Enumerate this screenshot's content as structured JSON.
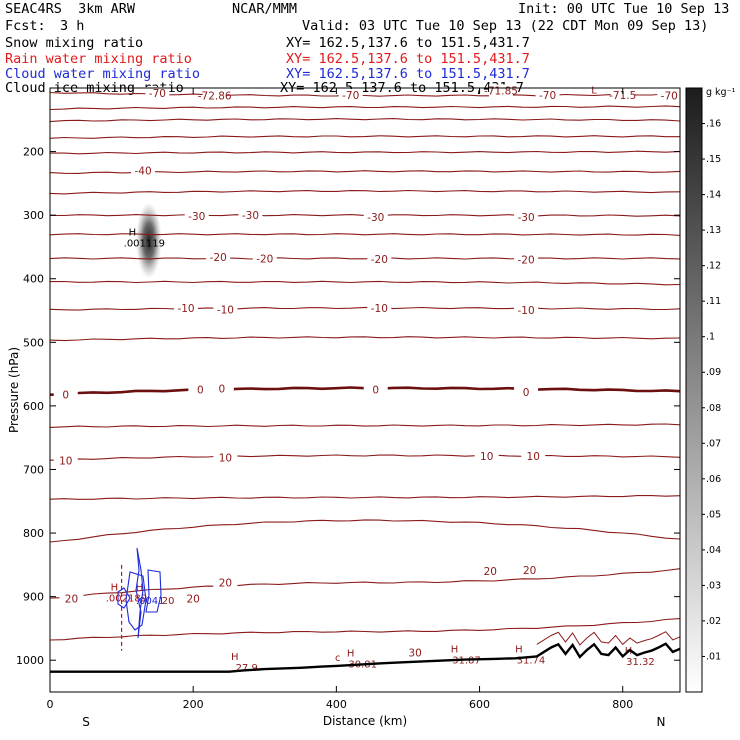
{
  "header": {
    "model": "SEAC4RS  3km ARW",
    "org": "NCAR/MMM",
    "init": "Init: 00 UTC Tue 10 Sep 13",
    "fcst_label": "Fcst:",
    "fcst_value": "3 h",
    "valid": "Valid: 03 UTC Tue 10 Sep 13 (22 CDT Mon 09 Sep 13)",
    "fields": [
      {
        "name": "Snow mixing ratio",
        "xy": "XY= 162.5,137.6 to 151.5,431.7",
        "color": "#000000"
      },
      {
        "name": "Rain water mixing ratio",
        "xy": "XY= 162.5,137.6 to 151.5,431.7",
        "color": "#e31a1c"
      },
      {
        "name": "Cloud water mixing ratio",
        "xy": "XY= 162.5,137.6 to 151.5,431.7",
        "color": "#1f2bd8"
      },
      {
        "name": "Cloud ice mixing ratio",
        "xy": "XY= 162.5,137.6 to 151.5,431.7",
        "color": "#000000"
      }
    ]
  },
  "chart_data": {
    "type": "cross-section contour",
    "xlabel": "Distance (km)",
    "ylabel": "Pressure (hPa)",
    "xlim": [
      0,
      880
    ],
    "ylim": [
      100,
      1050
    ],
    "y_scale": "linear (pressure, inverted)",
    "x_ticks": [
      0,
      200,
      400,
      600,
      800
    ],
    "y_ticks": [
      200,
      300,
      400,
      500,
      600,
      700,
      800,
      900,
      1000
    ],
    "endpoint_labels": {
      "left": "S",
      "right": "N"
    },
    "colorbar": {
      "units": "g kg⁻¹",
      "ticks": [
        ".01",
        ".02",
        ".03",
        ".04",
        ".05",
        ".06",
        ".07",
        ".08",
        ".09",
        ".1",
        ".11",
        ".12",
        ".13",
        ".14",
        ".15",
        ".16"
      ],
      "min": 0,
      "max": 0.17,
      "color_low": "#ffffff",
      "color_high": "#222222"
    },
    "temperature_contours": [
      {
        "label": "-70",
        "p_left": 107,
        "p_mid": 112,
        "p_right": 110
      },
      {
        "label": "",
        "p_left": 133,
        "p_mid": 130,
        "p_right": 129
      },
      {
        "label": "",
        "p_left": 152,
        "p_mid": 149,
        "p_right": 151
      },
      {
        "label": "",
        "p_left": 179,
        "p_mid": 176,
        "p_right": 176
      },
      {
        "label": "",
        "p_left": 203,
        "p_mid": 201,
        "p_right": 200
      },
      {
        "label": "-40",
        "p_left": 234,
        "p_mid": 231,
        "p_right": 232
      },
      {
        "label": "",
        "p_left": 266,
        "p_mid": 262,
        "p_right": 264
      },
      {
        "label": "-30",
        "p_left": 300,
        "p_mid": 300,
        "p_right": 301
      },
      {
        "label": "",
        "p_left": 330,
        "p_mid": 330,
        "p_right": 331
      },
      {
        "label": "-20",
        "p_left": 368,
        "p_mid": 368,
        "p_right": 368
      },
      {
        "label": "",
        "p_left": 405,
        "p_mid": 405,
        "p_right": 409
      },
      {
        "label": "-10",
        "p_left": 449,
        "p_mid": 446,
        "p_right": 448
      },
      {
        "label": "",
        "p_left": 497,
        "p_mid": 492,
        "p_right": 494
      },
      {
        "label": "0",
        "p_left": 582,
        "p_mid": 572,
        "p_right": 577
      },
      {
        "label": "",
        "p_left": 633,
        "p_mid": 631,
        "p_right": 629
      },
      {
        "label": "10",
        "p_left": 685,
        "p_mid": 678,
        "p_right": 680
      },
      {
        "label": "",
        "p_left": 747,
        "p_mid": 744,
        "p_right": 741
      },
      {
        "label": "",
        "p_left": 815,
        "p_mid": 780,
        "p_right": 810
      },
      {
        "label": "20",
        "p_left": 903,
        "p_mid": 878,
        "p_right": 857
      },
      {
        "label": "",
        "p_left": 968,
        "p_mid": 955,
        "p_right": 935
      }
    ],
    "contour_labels": [
      {
        "text": "-72.86",
        "x": 230,
        "p": 112
      },
      {
        "text": "-70",
        "x": 150,
        "p": 108
      },
      {
        "text": "-70",
        "x": 420,
        "p": 111
      },
      {
        "text": "-71.85",
        "x": 630,
        "p": 104
      },
      {
        "text": "-70",
        "x": 695,
        "p": 111
      },
      {
        "text": "-71.5",
        "x": 800,
        "p": 111
      },
      {
        "text": "-70",
        "x": 865,
        "p": 112
      },
      {
        "text": "-40",
        "x": 130,
        "p": 230
      },
      {
        "text": "-30",
        "x": 205,
        "p": 301
      },
      {
        "text": "-30",
        "x": 280,
        "p": 300
      },
      {
        "text": "-30",
        "x": 455,
        "p": 303
      },
      {
        "text": "-30",
        "x": 665,
        "p": 303
      },
      {
        "text": "-20",
        "x": 235,
        "p": 366
      },
      {
        "text": "-20",
        "x": 300,
        "p": 368
      },
      {
        "text": "-20",
        "x": 460,
        "p": 369
      },
      {
        "text": "-20",
        "x": 665,
        "p": 370
      },
      {
        "text": "-10",
        "x": 190,
        "p": 446
      },
      {
        "text": "-10",
        "x": 245,
        "p": 448
      },
      {
        "text": "-10",
        "x": 460,
        "p": 446
      },
      {
        "text": "-10",
        "x": 665,
        "p": 449
      },
      {
        "text": "0",
        "x": 22,
        "p": 582
      },
      {
        "text": "0",
        "x": 210,
        "p": 574
      },
      {
        "text": "0",
        "x": 240,
        "p": 573
      },
      {
        "text": "0",
        "x": 455,
        "p": 574
      },
      {
        "text": "0",
        "x": 665,
        "p": 578
      },
      {
        "text": "10",
        "x": 22,
        "p": 686
      },
      {
        "text": "10",
        "x": 245,
        "p": 681
      },
      {
        "text": "10",
        "x": 610,
        "p": 679
      },
      {
        "text": "10",
        "x": 675,
        "p": 679
      },
      {
        "text": "20",
        "x": 30,
        "p": 903
      },
      {
        "text": "20",
        "x": 200,
        "p": 903
      },
      {
        "text": "20",
        "x": 245,
        "p": 878
      },
      {
        "text": "20",
        "x": 615,
        "p": 860
      },
      {
        "text": "20",
        "x": 670,
        "p": 858
      },
      {
        "text": "30",
        "x": 510,
        "p": 988
      }
    ],
    "highs": [
      {
        "label": "H",
        "value": ".001119",
        "x": 115,
        "p": 332,
        "color": "#000000"
      },
      {
        "label": "H",
        "value": ".002189",
        "x": 90,
        "p": 890,
        "color": "#b01010"
      },
      {
        "label": "H",
        "value": "",
        "x": 125,
        "p": 890,
        "color": "#b01010"
      },
      {
        "label": "H",
        "value": "27.9",
        "x": 258,
        "p": 1000,
        "color": "#8b1a1a"
      },
      {
        "label": "H",
        "value": "30.81",
        "x": 420,
        "p": 994,
        "color": "#8b1a1a"
      },
      {
        "label": "H",
        "value": "31.87",
        "x": 565,
        "p": 988,
        "color": "#8b1a1a"
      },
      {
        "label": "H",
        "value": "31.74",
        "x": 655,
        "p": 988,
        "color": "#8b1a1a"
      },
      {
        "label": "H",
        "value": "31.32",
        "x": 808,
        "p": 990,
        "color": "#8b1a1a"
      }
    ],
    "extra_labels": [
      {
        "text": ".0041",
        "x": 140,
        "p": 905,
        "color": "#1f2bd8"
      },
      {
        "text": "L",
        "x": 760,
        "p": 102,
        "color": "#8b1a1a"
      },
      {
        "text": "c",
        "x": 402,
        "p": 995,
        "color": "#8b1a1a"
      },
      {
        "text": "20",
        "x": 165,
        "p": 905,
        "color": "#8b1a1a"
      }
    ],
    "terrain": {
      "x": [
        0,
        50,
        100,
        150,
        200,
        250,
        270,
        300,
        350,
        380,
        400,
        430,
        460,
        500,
        540,
        580,
        620,
        650,
        680,
        700,
        710,
        720,
        730,
        740,
        750,
        760,
        770,
        780,
        790,
        800,
        810,
        820,
        830,
        840,
        850,
        860,
        870,
        880
      ],
      "p": [
        1018,
        1018,
        1018,
        1018,
        1018,
        1018,
        1016,
        1014,
        1012,
        1010,
        1009,
        1007,
        1005,
        1003,
        1001,
        999,
        998,
        997,
        994,
        980,
        975,
        990,
        976,
        995,
        984,
        975,
        990,
        992,
        980,
        994,
        984,
        992,
        988,
        985,
        980,
        974,
        987,
        982
      ]
    },
    "snow_max": {
      "x": 138,
      "p": 340,
      "value": 0.16,
      "p_top": 290,
      "p_bottom": 410,
      "half_width_km": 18
    }
  }
}
